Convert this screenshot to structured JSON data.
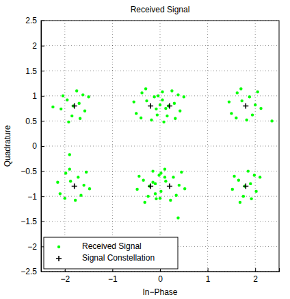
{
  "chart_data": {
    "type": "scatter",
    "title": "Received Signal",
    "x_label": "In−Phase",
    "y_label": "Quadrature",
    "xlim": [
      -2.5,
      2.5
    ],
    "ylim": [
      -2.5,
      2.5
    ],
    "xticks": [
      {
        "value": -2,
        "label": "−2"
      },
      {
        "value": -1,
        "label": "−1"
      },
      0,
      1,
      2
    ],
    "yticks": [
      {
        "value": -2.5,
        "label": "−2.5"
      },
      {
        "value": -2,
        "label": "−2"
      },
      {
        "value": -1.5,
        "label": "−1.5"
      },
      {
        "value": -1,
        "label": "−1"
      },
      {
        "value": -0.5,
        "label": "−0.5"
      },
      0,
      0.5,
      1,
      1.5,
      2,
      2.5
    ],
    "grid": true,
    "legend": "lower left",
    "series": [
      {
        "name": "Received Signal",
        "color": "#00ff00",
        "marker": "point",
        "x": [
          -1.7,
          -1.95,
          -1.58,
          -1.85,
          -1.5,
          -2.08,
          -1.75,
          -1.92,
          -1.62,
          -2.04,
          -1.68,
          -1.82,
          -0.28,
          0,
          -0.5,
          -0.06,
          -0.38,
          0.12,
          -0.18,
          -0.3,
          0.05,
          -0.55,
          -0.12,
          -0.4,
          0.3,
          0.05,
          0.42,
          0.15,
          0.5,
          -0.08,
          0.25,
          0.08,
          0.38,
          -0.04,
          0.32,
          0.18,
          1.72,
          2.0,
          1.5,
          1.94,
          1.62,
          2.12,
          1.82,
          1.7,
          2.05,
          1.45,
          1.88,
          1.6,
          -1.88,
          -1.6,
          -2.1,
          -1.66,
          -1.98,
          -1.48,
          -1.78,
          -1.9,
          -1.55,
          -2.15,
          -1.72,
          -2.0,
          -0.1,
          -0.35,
          0.02,
          -0.25,
          0.1,
          -0.48,
          -0.15,
          -0.32,
          -0.02,
          -0.44,
          -0.08,
          -0.22,
          0.12,
          0.4,
          -0.1,
          0.34,
          0.02,
          0.52,
          0.22,
          0.1,
          0.45,
          -0.15,
          0.28,
          0,
          1.9,
          1.65,
          2.02,
          1.75,
          2.1,
          1.52,
          1.85,
          1.68,
          1.98,
          1.56,
          1.92,
          1.78,
          -1.9,
          0.38,
          2.35,
          -2.25
        ],
        "values": [
          0.85,
          0.92,
          0.7,
          0.6,
          0.98,
          0.74,
          1.1,
          0.48,
          1.02,
          1.0,
          0.55,
          0.8,
          0.9,
          0.82,
          0.65,
          0.62,
          1.06,
          0.75,
          0.52,
          1.14,
          1.08,
          0.88,
          0.98,
          0.56,
          0.85,
          0.92,
          0.7,
          0.6,
          0.98,
          0.74,
          1.1,
          0.48,
          1.02,
          1.0,
          0.55,
          0.8,
          0.9,
          0.82,
          0.65,
          0.62,
          1.06,
          0.75,
          0.52,
          1.14,
          1.08,
          0.88,
          0.98,
          0.56,
          -0.7,
          -0.78,
          -0.95,
          -0.98,
          -0.54,
          -0.85,
          -1.08,
          -0.46,
          -0.52,
          -0.72,
          -0.62,
          -1.04,
          -0.75,
          -0.68,
          -0.9,
          -1.0,
          -0.62,
          -0.86,
          -0.5,
          -1.12,
          -0.58,
          -0.6,
          -1.05,
          -0.8,
          -0.7,
          -0.78,
          -0.95,
          -0.98,
          -0.54,
          -0.85,
          -1.08,
          -0.46,
          -0.52,
          -0.72,
          -0.62,
          -1.04,
          -0.75,
          -0.68,
          -0.9,
          -1.0,
          -0.62,
          -0.86,
          -0.5,
          -1.12,
          -0.58,
          -0.6,
          -1.05,
          -0.8,
          -0.17,
          -1.43,
          0.5,
          0.78
        ]
      },
      {
        "name": "Signal Constellation",
        "color": "#000000",
        "marker": "plus",
        "x": [
          -1.8,
          -0.2,
          0.2,
          1.8,
          -1.8,
          -0.2,
          0.2,
          1.8
        ],
        "values": [
          0.8,
          0.8,
          0.8,
          0.8,
          -0.8,
          -0.8,
          -0.8,
          -0.8
        ]
      }
    ]
  }
}
